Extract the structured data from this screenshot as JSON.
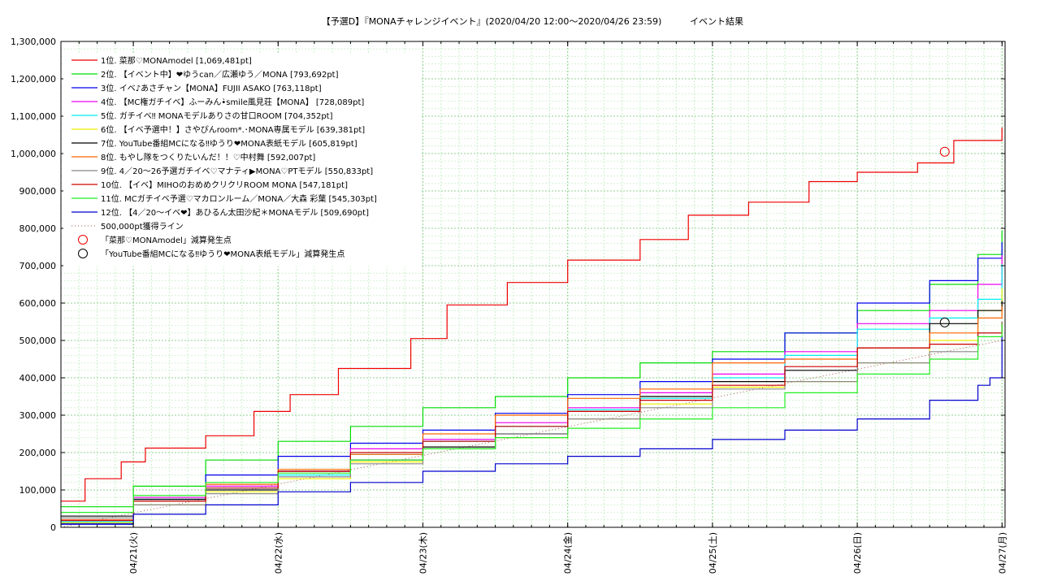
{
  "chart_data": {
    "type": "line",
    "title": "【予選D】『MONAチャレンジイベント』(2020/04/20 12:00〜2020/04/26 23:59)",
    "subtitle": "イベント結果",
    "ylim": [
      0,
      1300000
    ],
    "yticks": [
      "0",
      "100,000",
      "200,000",
      "300,000",
      "400,000",
      "500,000",
      "600,000",
      "700,000",
      "800,000",
      "900,000",
      "1,000,000",
      "1,100,000",
      "1,200,000",
      "1,300,000"
    ],
    "xlim": [
      "2020-04-20 12:00",
      "2020-04-27 00:30"
    ],
    "x_ticks": [
      {
        "x": "2020-04-21 00:00",
        "label": "04/21(火)"
      },
      {
        "x": "2020-04-22 00:00",
        "label": "04/22(水)"
      },
      {
        "x": "2020-04-23 00:00",
        "label": "04/23(木)"
      },
      {
        "x": "2020-04-24 00:00",
        "label": "04/24(金)"
      },
      {
        "x": "2020-04-25 00:00",
        "label": "04/25(土)"
      },
      {
        "x": "2020-04-26 00:00",
        "label": "04/26(日)"
      },
      {
        "x": "2020-04-27 00:00",
        "label": "04/27(月)"
      }
    ],
    "grid": true,
    "legend_position": "top-left",
    "series": [
      {
        "name": "1位. 菜那♡MONAmodel [1,069,481pt]",
        "color": "#ee0000",
        "points": [
          [
            "2020-04-20 12:00",
            70000
          ],
          [
            "2020-04-20 16:00",
            130000
          ],
          [
            "2020-04-20 22:00",
            175000
          ],
          [
            "2020-04-21 02:00",
            212000
          ],
          [
            "2020-04-21 12:00",
            245000
          ],
          [
            "2020-04-21 20:00",
            310000
          ],
          [
            "2020-04-22 02:00",
            355000
          ],
          [
            "2020-04-22 10:00",
            425000
          ],
          [
            "2020-04-22 22:00",
            505000
          ],
          [
            "2020-04-23 04:00",
            595000
          ],
          [
            "2020-04-23 14:00",
            655000
          ],
          [
            "2020-04-24 00:00",
            715000
          ],
          [
            "2020-04-24 12:00",
            770000
          ],
          [
            "2020-04-24 20:00",
            835000
          ],
          [
            "2020-04-25 06:00",
            870000
          ],
          [
            "2020-04-25 16:00",
            925000
          ],
          [
            "2020-04-26 00:00",
            950000
          ],
          [
            "2020-04-26 10:00",
            975000
          ],
          [
            "2020-04-26 16:00",
            1035000
          ],
          [
            "2020-04-26 23:59",
            1069481
          ]
        ]
      },
      {
        "name": "2位. 【イベント中】❤ゆうcan／広瀬ゆう／MONA [793,692pt]",
        "color": "#00dd00",
        "points": [
          [
            "2020-04-20 12:00",
            55000
          ],
          [
            "2020-04-21 00:00",
            110000
          ],
          [
            "2020-04-21 12:00",
            180000
          ],
          [
            "2020-04-22 00:00",
            230000
          ],
          [
            "2020-04-22 12:00",
            270000
          ],
          [
            "2020-04-23 00:00",
            320000
          ],
          [
            "2020-04-23 12:00",
            350000
          ],
          [
            "2020-04-24 00:00",
            400000
          ],
          [
            "2020-04-24 12:00",
            440000
          ],
          [
            "2020-04-25 00:00",
            470000
          ],
          [
            "2020-04-25 12:00",
            520000
          ],
          [
            "2020-04-26 00:00",
            580000
          ],
          [
            "2020-04-26 12:00",
            650000
          ],
          [
            "2020-04-26 20:00",
            730000
          ],
          [
            "2020-04-26 23:59",
            793692
          ]
        ]
      },
      {
        "name": "3位. イベ♪あさチャン【MONA】FUJII ASAKO [763,118pt]",
        "color": "#0000ee",
        "points": [
          [
            "2020-04-20 12:00",
            10000
          ],
          [
            "2020-04-21 00:00",
            75000
          ],
          [
            "2020-04-21 12:00",
            140000
          ],
          [
            "2020-04-22 00:00",
            190000
          ],
          [
            "2020-04-22 12:00",
            225000
          ],
          [
            "2020-04-23 00:00",
            260000
          ],
          [
            "2020-04-23 12:00",
            305000
          ],
          [
            "2020-04-24 00:00",
            355000
          ],
          [
            "2020-04-24 12:00",
            390000
          ],
          [
            "2020-04-25 00:00",
            450000
          ],
          [
            "2020-04-25 12:00",
            520000
          ],
          [
            "2020-04-26 00:00",
            600000
          ],
          [
            "2020-04-26 12:00",
            660000
          ],
          [
            "2020-04-26 20:00",
            720000
          ],
          [
            "2020-04-26 23:59",
            763118
          ]
        ]
      },
      {
        "name": "4位. 【MC権ガチイベ】ふーみん•̀smile風見荘【MONA】 [728,089pt]",
        "color": "#ee00ee",
        "points": [
          [
            "2020-04-20 12:00",
            20000
          ],
          [
            "2020-04-21 00:00",
            80000
          ],
          [
            "2020-04-21 12:00",
            110000
          ],
          [
            "2020-04-22 00:00",
            150000
          ],
          [
            "2020-04-22 12:00",
            210000
          ],
          [
            "2020-04-23 00:00",
            235000
          ],
          [
            "2020-04-23 12:00",
            280000
          ],
          [
            "2020-04-24 00:00",
            320000
          ],
          [
            "2020-04-24 12:00",
            360000
          ],
          [
            "2020-04-25 00:00",
            410000
          ],
          [
            "2020-04-25 12:00",
            470000
          ],
          [
            "2020-04-26 00:00",
            545000
          ],
          [
            "2020-04-26 12:00",
            580000
          ],
          [
            "2020-04-26 20:00",
            650000
          ],
          [
            "2020-04-26 23:59",
            728089
          ]
        ]
      },
      {
        "name": "5位. ガチイベ‼ MONAモデルありさの甘口ROOM [704,352pt]",
        "color": "#00eeee",
        "points": [
          [
            "2020-04-20 12:00",
            15000
          ],
          [
            "2020-04-21 00:00",
            70000
          ],
          [
            "2020-04-21 12:00",
            105000
          ],
          [
            "2020-04-22 00:00",
            140000
          ],
          [
            "2020-04-22 12:00",
            195000
          ],
          [
            "2020-04-23 00:00",
            230000
          ],
          [
            "2020-04-23 12:00",
            270000
          ],
          [
            "2020-04-24 00:00",
            315000
          ],
          [
            "2020-04-24 12:00",
            345000
          ],
          [
            "2020-04-25 00:00",
            400000
          ],
          [
            "2020-04-25 12:00",
            460000
          ],
          [
            "2020-04-26 00:00",
            530000
          ],
          [
            "2020-04-26 12:00",
            560000
          ],
          [
            "2020-04-26 20:00",
            610000
          ],
          [
            "2020-04-26 23:59",
            704352
          ]
        ]
      },
      {
        "name": "6位. 【イベ予選中！】さやぴんroom*.･MONA専属モデル [639,381pt]",
        "color": "#eeee00",
        "points": [
          [
            "2020-04-20 12:00",
            12000
          ],
          [
            "2020-04-21 00:00",
            60000
          ],
          [
            "2020-04-21 12:00",
            95000
          ],
          [
            "2020-04-22 00:00",
            130000
          ],
          [
            "2020-04-22 12:00",
            175000
          ],
          [
            "2020-04-23 00:00",
            210000
          ],
          [
            "2020-04-23 12:00",
            240000
          ],
          [
            "2020-04-24 00:00",
            290000
          ],
          [
            "2020-04-24 12:00",
            330000
          ],
          [
            "2020-04-25 00:00",
            375000
          ],
          [
            "2020-04-25 12:00",
            390000
          ],
          [
            "2020-04-26 00:00",
            440000
          ],
          [
            "2020-04-26 12:00",
            500000
          ],
          [
            "2020-04-26 20:00",
            580000
          ],
          [
            "2020-04-26 23:59",
            639381
          ]
        ]
      },
      {
        "name": "7位. YouTube番組MCになる‼ゆうり❤MONA表紙モデル [605,819pt]",
        "color": "#000000",
        "points": [
          [
            "2020-04-20 12:00",
            30000
          ],
          [
            "2020-04-21 00:00",
            75000
          ],
          [
            "2020-04-21 12:00",
            100000
          ],
          [
            "2020-04-22 00:00",
            150000
          ],
          [
            "2020-04-22 12:00",
            180000
          ],
          [
            "2020-04-23 00:00",
            215000
          ],
          [
            "2020-04-23 12:00",
            250000
          ],
          [
            "2020-04-24 00:00",
            310000
          ],
          [
            "2020-04-24 12:00",
            350000
          ],
          [
            "2020-04-25 00:00",
            390000
          ],
          [
            "2020-04-25 12:00",
            420000
          ],
          [
            "2020-04-26 00:00",
            480000
          ],
          [
            "2020-04-26 12:00",
            545000
          ],
          [
            "2020-04-26 20:00",
            580000
          ],
          [
            "2020-04-26 23:59",
            605819
          ]
        ]
      },
      {
        "name": "8位. もやし隊をつくりたいんだ！！♡中村舞 [592,007pt]",
        "color": "#ff6600",
        "points": [
          [
            "2020-04-20 12:00",
            20000
          ],
          [
            "2020-04-21 00:00",
            70000
          ],
          [
            "2020-04-21 12:00",
            115000
          ],
          [
            "2020-04-22 00:00",
            155000
          ],
          [
            "2020-04-22 12:00",
            195000
          ],
          [
            "2020-04-23 00:00",
            250000
          ],
          [
            "2020-04-23 12:00",
            300000
          ],
          [
            "2020-04-24 00:00",
            345000
          ],
          [
            "2020-04-24 12:00",
            370000
          ],
          [
            "2020-04-25 00:00",
            440000
          ],
          [
            "2020-04-25 12:00",
            450000
          ],
          [
            "2020-04-26 00:00",
            480000
          ],
          [
            "2020-04-26 12:00",
            520000
          ],
          [
            "2020-04-26 20:00",
            560000
          ],
          [
            "2020-04-26 23:59",
            592007
          ]
        ]
      },
      {
        "name": "9位. 4／20〜26予選ガチイベ♡マナティ▶MONA♡PTモデル [550,833pt]",
        "color": "#888888",
        "points": [
          [
            "2020-04-20 12:00",
            25000
          ],
          [
            "2020-04-21 00:00",
            60000
          ],
          [
            "2020-04-21 12:00",
            90000
          ],
          [
            "2020-04-22 00:00",
            135000
          ],
          [
            "2020-04-22 12:00",
            170000
          ],
          [
            "2020-04-23 00:00",
            210000
          ],
          [
            "2020-04-23 12:00",
            250000
          ],
          [
            "2020-04-24 00:00",
            290000
          ],
          [
            "2020-04-24 12:00",
            320000
          ],
          [
            "2020-04-25 00:00",
            370000
          ],
          [
            "2020-04-25 12:00",
            390000
          ],
          [
            "2020-04-26 00:00",
            440000
          ],
          [
            "2020-04-26 12:00",
            470000
          ],
          [
            "2020-04-26 20:00",
            520000
          ],
          [
            "2020-04-26 23:59",
            550833
          ]
        ]
      },
      {
        "name": "10位. 【イベ】MIHOのおめめクリクリROOM MONA [547,181pt]",
        "color": "#cc0000",
        "points": [
          [
            "2020-04-20 12:00",
            18000
          ],
          [
            "2020-04-21 00:00",
            70000
          ],
          [
            "2020-04-21 12:00",
            105000
          ],
          [
            "2020-04-22 00:00",
            150000
          ],
          [
            "2020-04-22 12:00",
            200000
          ],
          [
            "2020-04-23 00:00",
            230000
          ],
          [
            "2020-04-23 12:00",
            270000
          ],
          [
            "2020-04-24 00:00",
            310000
          ],
          [
            "2020-04-24 12:00",
            340000
          ],
          [
            "2020-04-25 00:00",
            380000
          ],
          [
            "2020-04-25 12:00",
            430000
          ],
          [
            "2020-04-26 00:00",
            480000
          ],
          [
            "2020-04-26 12:00",
            490000
          ],
          [
            "2020-04-26 20:00",
            520000
          ],
          [
            "2020-04-26 23:59",
            547181
          ]
        ]
      },
      {
        "name": "11位. MCガチイベ予選♡マカロンルーム／MONA／大森 彩葉 [545,303pt]",
        "color": "#22ee22",
        "points": [
          [
            "2020-04-20 12:00",
            40000
          ],
          [
            "2020-04-21 00:00",
            85000
          ],
          [
            "2020-04-21 12:00",
            120000
          ],
          [
            "2020-04-22 00:00",
            145000
          ],
          [
            "2020-04-22 12:00",
            180000
          ],
          [
            "2020-04-23 00:00",
            210000
          ],
          [
            "2020-04-23 12:00",
            240000
          ],
          [
            "2020-04-24 00:00",
            265000
          ],
          [
            "2020-04-24 12:00",
            290000
          ],
          [
            "2020-04-25 00:00",
            320000
          ],
          [
            "2020-04-25 12:00",
            360000
          ],
          [
            "2020-04-26 00:00",
            410000
          ],
          [
            "2020-04-26 12:00",
            450000
          ],
          [
            "2020-04-26 20:00",
            510000
          ],
          [
            "2020-04-26 23:59",
            545303
          ]
        ]
      },
      {
        "name": "12位. 【4／20〜イベ❤】あひるん太田沙紀＊MONAモデル [509,690pt]",
        "color": "#0000cc",
        "points": [
          [
            "2020-04-20 12:00",
            8000
          ],
          [
            "2020-04-21 00:00",
            35000
          ],
          [
            "2020-04-21 12:00",
            60000
          ],
          [
            "2020-04-22 00:00",
            95000
          ],
          [
            "2020-04-22 12:00",
            120000
          ],
          [
            "2020-04-23 00:00",
            150000
          ],
          [
            "2020-04-23 12:00",
            170000
          ],
          [
            "2020-04-24 00:00",
            190000
          ],
          [
            "2020-04-24 12:00",
            210000
          ],
          [
            "2020-04-25 00:00",
            235000
          ],
          [
            "2020-04-25 12:00",
            260000
          ],
          [
            "2020-04-26 00:00",
            290000
          ],
          [
            "2020-04-26 12:00",
            340000
          ],
          [
            "2020-04-26 20:00",
            380000
          ],
          [
            "2020-04-26 22:00",
            400000
          ],
          [
            "2020-04-26 23:59",
            509690
          ]
        ]
      }
    ],
    "reference_line": {
      "name": "500,000pt獲得ライン",
      "color": "#aa5555",
      "points": [
        [
          "2020-04-20 12:00",
          0
        ],
        [
          "2020-04-26 23:59",
          500000
        ]
      ]
    },
    "markers": [
      {
        "name": "「菜那♡MONAmodel」減算発生点",
        "color": "#ee0000",
        "x": "2020-04-26 14:30",
        "y": 1005000
      },
      {
        "name": "「YouTube番組MCになる‼ゆうり❤MONA表紙モデル」減算発生点",
        "color": "#000000",
        "x": "2020-04-26 14:30",
        "y": 548000
      }
    ]
  }
}
